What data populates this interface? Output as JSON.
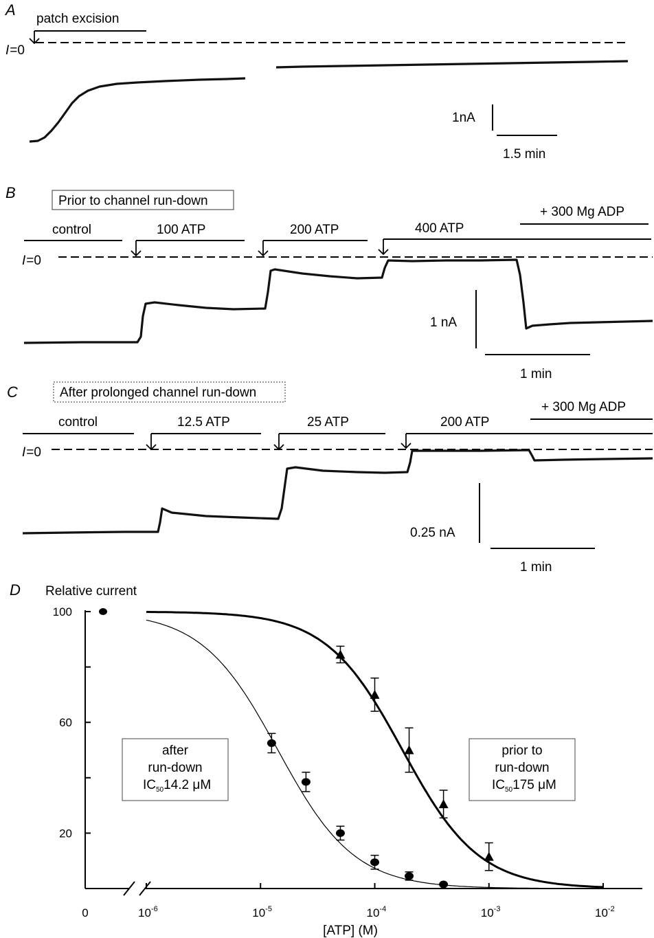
{
  "panels": {
    "A": {
      "label": "A",
      "zero_label": "I=0",
      "event": "patch excision",
      "scale_current": "1nA",
      "scale_time": "1.5 min"
    },
    "B": {
      "label": "B",
      "title": "Prior to channel run-down",
      "zero_label": "I=0",
      "segments": [
        "control",
        "100 ATP",
        "200 ATP",
        "400 ATP",
        "+ 300 Mg ADP"
      ],
      "scale_current": "1 nA",
      "scale_time": "1 min"
    },
    "C": {
      "label": "C",
      "title": "After prolonged channel run-down",
      "zero_label": "I=0",
      "segments": [
        "control",
        "12.5 ATP",
        "25 ATP",
        "200 ATP",
        "+ 300 Mg ADP"
      ],
      "scale_current": "0.25 nA",
      "scale_time": "1 min"
    },
    "D": {
      "label": "D"
    }
  },
  "chart_data": {
    "type": "scatter",
    "title": "",
    "ylabel": "Relative current",
    "xlabel": "[ATP] (M)",
    "x_scale": "log",
    "xlim": [
      1e-06,
      0.01
    ],
    "ylim": [
      0,
      100
    ],
    "y_ticks": [
      "100",
      "60",
      "20"
    ],
    "x_ticks": [
      {
        "base": "10",
        "exp": "-6"
      },
      {
        "base": "10",
        "exp": "-5"
      },
      {
        "base": "10",
        "exp": "-4"
      },
      {
        "base": "10",
        "exp": "-3"
      },
      {
        "base": "10",
        "exp": "-2"
      }
    ],
    "zero_tick": "0",
    "control_point": {
      "x_label": "0",
      "y": 100
    },
    "series": [
      {
        "marker": "circle",
        "fit": {
          "ic50": 1.42e-05,
          "hill": 1.3
        },
        "line": "thin",
        "points": [
          {
            "x": 1.25e-05,
            "y": 52.5,
            "err": 3.5
          },
          {
            "x": 2.5e-05,
            "y": 38.5,
            "err": 3.5
          },
          {
            "x": 5e-05,
            "y": 20,
            "err": 2.5
          },
          {
            "x": 0.0001,
            "y": 9.5,
            "err": 2.5
          },
          {
            "x": 0.0002,
            "y": 4.5,
            "err": 1.5
          },
          {
            "x": 0.0004,
            "y": 1.5,
            "err": 0
          }
        ],
        "box": {
          "line1": "after",
          "line2": "run-down",
          "ic_prefix": "IC",
          "ic_sub": "50",
          "ic_value": "14.2 μM"
        }
      },
      {
        "marker": "triangle",
        "fit": {
          "ic50": 0.000175,
          "hill": 1.3
        },
        "line": "thick",
        "points": [
          {
            "x": 5e-05,
            "y": 84.5,
            "err": 3
          },
          {
            "x": 0.0001,
            "y": 70,
            "err": 6
          },
          {
            "x": 0.0002,
            "y": 50,
            "err": 8
          },
          {
            "x": 0.0004,
            "y": 30.5,
            "err": 5
          },
          {
            "x": 0.001,
            "y": 11.5,
            "err": 5
          }
        ],
        "box": {
          "line1": "prior to",
          "line2": "run-down",
          "ic_prefix": "IC",
          "ic_sub": "50",
          "ic_value": "175 μM"
        }
      }
    ]
  }
}
